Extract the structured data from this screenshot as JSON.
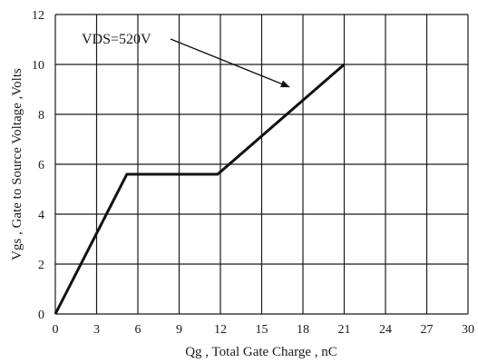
{
  "chart_data": {
    "type": "line",
    "title": "",
    "xlabel": "Qg , Total Gate Charge , nC",
    "ylabel": "Vgs , Gate to Source Voltage ,Volts",
    "xlim": [
      0,
      30
    ],
    "ylim": [
      0,
      12
    ],
    "x_ticks": [
      0,
      3,
      6,
      9,
      12,
      15,
      18,
      21,
      24,
      27,
      30
    ],
    "y_ticks": [
      0,
      2,
      4,
      6,
      8,
      10,
      12
    ],
    "grid": true,
    "legend": "none",
    "series": [
      {
        "x": [
          0,
          5.2,
          11.8,
          21
        ],
        "y": [
          0,
          5.6,
          5.6,
          10
        ]
      }
    ],
    "annotation": {
      "text": "VDS=520V",
      "arrow_to": [
        17,
        9.1
      ]
    },
    "colors": {
      "line": "#111111",
      "grid": "#1a1a1a",
      "background": "#ffffff"
    }
  }
}
